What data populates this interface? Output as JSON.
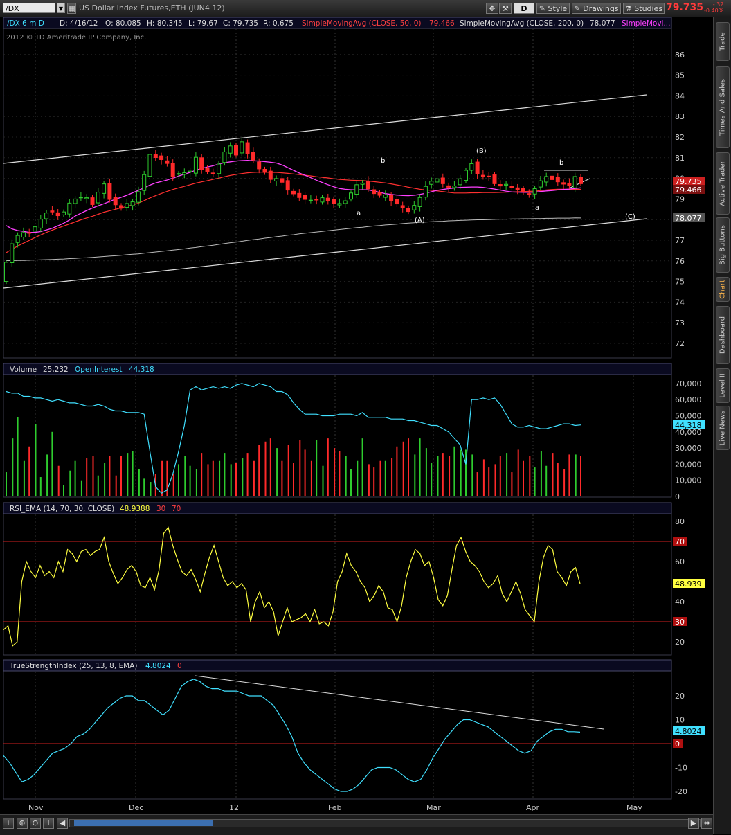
{
  "toolbar": {
    "symbol": "/DX",
    "title": "US Dollar Index Futures,ETH (JUN4 12)",
    "period": "D",
    "style": "Style",
    "drawings": "Drawings",
    "studies": "Studies",
    "last": "79.735",
    "change": "-.32",
    "change_pct": "-0.40%"
  },
  "sidebar_tabs": [
    {
      "label": "Trade",
      "active": false
    },
    {
      "label": "Times And Sales",
      "active": false
    },
    {
      "label": "Active Trader",
      "active": false
    },
    {
      "label": "Big Buttons",
      "active": false
    },
    {
      "label": "Chart",
      "active": true
    },
    {
      "label": "Dashboard",
      "active": false
    },
    {
      "label": "Level II",
      "active": false
    },
    {
      "label": "Live News",
      "active": false
    }
  ],
  "colors": {
    "up": "#2ecc2e",
    "down": "#ff2a2a",
    "sma50": "#ff3030",
    "sma20": "#ff40ff",
    "sma200": "#bbbbbb",
    "cyan": "#40e0ff",
    "yellow": "#ffff40"
  },
  "chart_data": [
    {
      "type": "candlestick",
      "header": {
        "symbol": "/DX 6 m D",
        "date": "D: 4/16/12",
        "open": "O: 80.085",
        "high": "H: 80.345",
        "low": "L: 79.67",
        "close": "C: 79.735",
        "range": "R: 0.675",
        "sma1_label": "SimpleMovingAvg (CLOSE, 50, 0)",
        "sma1_value": "79.466",
        "sma2_label": "SimpleMovingAvg (CLOSE, 200, 0)",
        "sma2_value": "78.077",
        "sma3_label": "SimpleMovi..."
      },
      "copyright": "2012 © TD Ameritrade IP Company, Inc.",
      "ylim": [
        71,
        86.5
      ],
      "yticks": [
        "86",
        "85",
        "84",
        "83",
        "82",
        "81",
        "80",
        "79",
        "78",
        "77",
        "76",
        "75",
        "74",
        "73",
        "72"
      ],
      "xticks": [
        "Nov",
        "Dec",
        "12",
        "Feb",
        "Mar",
        "Apr",
        "May"
      ],
      "price_labels": {
        "last": "79.735",
        "sma50": "79.466",
        "sma200": "78.077"
      },
      "wave_labels": [
        "b",
        "a",
        "(A)",
        "(B)",
        "a",
        "b",
        "(C)"
      ],
      "closes": [
        75.93,
        76.83,
        77.23,
        77.37,
        77.36,
        77.65,
        78.02,
        78.32,
        78.37,
        78.19,
        78.37,
        78.8,
        79.0,
        79.09,
        79.06,
        78.73,
        79.33,
        79.73,
        78.98,
        78.72,
        78.55,
        78.78,
        78.86,
        79.35,
        80.18,
        81.16,
        81.01,
        80.91,
        80.72,
        80.1,
        80.23,
        80.27,
        80.35,
        81.02,
        80.44,
        80.34,
        80.23,
        80.69,
        81.28,
        81.57,
        81.13,
        81.77,
        81.21,
        80.89,
        80.46,
        80.29,
        79.95,
        79.99,
        79.81,
        79.43,
        79.25,
        79.07,
        78.98,
        78.94,
        78.95,
        79.06,
        78.91,
        78.79,
        78.78,
        78.91,
        79.29,
        79.69,
        79.77,
        79.49,
        79.26,
        79.18,
        79.2,
        78.91,
        78.76,
        78.56,
        78.39,
        78.69,
        79.07,
        79.61,
        79.86,
        79.98,
        79.74,
        79.57,
        79.63,
        79.98,
        80.39,
        80.71,
        80.21,
        80.09,
        80.07,
        79.74,
        79.63,
        79.71,
        79.56,
        79.45,
        79.34,
        79.24,
        79.5,
        79.88,
        80.09,
        79.94,
        79.83,
        79.72,
        79.64,
        80.09,
        79.74
      ],
      "series": [
        {
          "name": "SimpleMovingAvg (CLOSE, 50, 0)",
          "values": [
            76.4,
            76.56,
            76.72,
            76.86,
            76.99,
            77.13,
            77.26,
            77.38,
            77.49,
            77.59,
            77.69,
            77.79,
            77.89,
            77.99,
            78.08,
            78.16,
            78.26,
            78.36,
            78.43,
            78.5,
            78.57,
            78.64,
            78.71,
            78.8,
            78.92,
            79.05,
            79.16,
            79.27,
            79.37,
            79.46,
            79.54,
            79.61,
            79.69,
            79.77,
            79.83,
            79.89,
            79.95,
            80.01,
            80.08,
            80.14,
            80.19,
            80.23,
            80.27,
            80.29,
            80.3,
            80.3,
            80.29,
            80.29,
            80.27,
            80.24,
            80.21,
            80.18,
            80.15,
            80.12,
            80.08,
            80.05,
            80.02,
            79.98,
            79.95,
            79.93,
            79.91,
            79.9,
            79.89,
            79.87,
            79.84,
            79.81,
            79.78,
            79.73,
            79.68,
            79.63,
            79.57,
            79.52,
            79.47,
            79.44,
            79.42,
            79.39,
            79.36,
            79.32,
            79.29,
            79.29,
            79.29,
            79.3,
            79.3,
            79.31,
            79.31,
            79.31,
            79.32,
            79.33,
            79.34,
            79.35,
            79.36,
            79.37,
            79.38,
            79.41,
            79.44,
            79.46,
            79.47,
            79.47,
            79.46,
            79.47,
            79.466
          ]
        },
        {
          "name": "SimpleMovingAvg (CLOSE, 200, 0)",
          "values": [
            76.01,
            76.01,
            76.02,
            76.02,
            76.03,
            76.04,
            76.05,
            76.06,
            76.07,
            76.08,
            76.09,
            76.11,
            76.12,
            76.14,
            76.15,
            76.17,
            76.19,
            76.21,
            76.23,
            76.25,
            76.27,
            76.3,
            76.32,
            76.34,
            76.37,
            76.4,
            76.43,
            76.46,
            76.49,
            76.52,
            76.55,
            76.58,
            76.62,
            76.65,
            76.69,
            76.72,
            76.76,
            76.8,
            76.84,
            76.88,
            76.91,
            76.95,
            76.99,
            77.03,
            77.06,
            77.1,
            77.13,
            77.17,
            77.2,
            77.24,
            77.27,
            77.31,
            77.34,
            77.37,
            77.4,
            77.43,
            77.46,
            77.49,
            77.52,
            77.55,
            77.58,
            77.61,
            77.63,
            77.66,
            77.69,
            77.71,
            77.74,
            77.76,
            77.78,
            77.81,
            77.83,
            77.85,
            77.87,
            77.88,
            77.9,
            77.91,
            77.92,
            77.94,
            77.95,
            77.96,
            77.97,
            77.98,
            77.99,
            77.99,
            78.0,
            78.01,
            78.02,
            78.02,
            78.03,
            78.03,
            78.04,
            78.04,
            78.05,
            78.05,
            78.06,
            78.06,
            78.07,
            78.07,
            78.07,
            78.08,
            78.077
          ]
        },
        {
          "name": "SimpleMovi...",
          "values": [
            77.71,
            77.55,
            77.47,
            77.43,
            77.38,
            77.38,
            77.42,
            77.5,
            77.58,
            77.7,
            77.83,
            77.98,
            78.17,
            78.31,
            78.44,
            78.56,
            78.67,
            78.77,
            78.88,
            78.99,
            79.08,
            79.18,
            79.3,
            79.42,
            79.54,
            79.67,
            79.78,
            79.85,
            79.92,
            80.01,
            80.11,
            80.2,
            80.29,
            80.4,
            80.48,
            80.55,
            80.61,
            80.69,
            80.76,
            80.8,
            80.84,
            80.86,
            80.87,
            80.85,
            80.84,
            80.81,
            80.78,
            80.74,
            80.65,
            80.52,
            80.39,
            80.26,
            80.15,
            80.03,
            79.91,
            79.8,
            79.69,
            79.59,
            79.51,
            79.47,
            79.45,
            79.44,
            79.45,
            79.44,
            79.39,
            79.32,
            79.26,
            79.22,
            79.19,
            79.17,
            79.16,
            79.18,
            79.22,
            79.28,
            79.35,
            79.42,
            79.46,
            79.5,
            79.53,
            79.56,
            79.57,
            79.58,
            79.58,
            79.56,
            79.52,
            79.48,
            79.43,
            79.38,
            79.34,
            79.33,
            79.32,
            79.32,
            79.33,
            79.36,
            79.39,
            79.41,
            79.44,
            79.46,
            79.48,
            79.51,
            79.54
          ]
        }
      ]
    },
    {
      "type": "bar",
      "label": "Volume",
      "value": "25,232",
      "oi_label": "OpenInterest",
      "oi_value": "44,318",
      "ylim": [
        0,
        72000
      ],
      "yticks": [
        "70,000",
        "60,000",
        "50,000",
        "40,000",
        "30,000",
        "20,000",
        "10,000",
        "0"
      ],
      "values": [
        15000,
        36000,
        49000,
        22000,
        31000,
        45000,
        12000,
        26000,
        40000,
        19000,
        7000,
        16000,
        22000,
        10000,
        24000,
        25000,
        13000,
        21000,
        25000,
        13000,
        25000,
        27000,
        28000,
        17000,
        11000,
        9000,
        14000,
        22000,
        22000,
        14000,
        20000,
        25000,
        19000,
        17000,
        27000,
        20000,
        22000,
        22000,
        27000,
        20000,
        21000,
        24000,
        27000,
        22000,
        32000,
        34000,
        36000,
        30000,
        22000,
        32000,
        21000,
        35000,
        29000,
        22000,
        35000,
        19000,
        36000,
        30000,
        28000,
        25000,
        17000,
        22000,
        36000,
        20000,
        18000,
        22000,
        22000,
        24000,
        31000,
        34000,
        36000,
        26000,
        36000,
        30000,
        21000,
        25000,
        27000,
        25000,
        31000,
        29000,
        29000,
        26000,
        15000,
        23000,
        18000,
        20000,
        25000,
        27000,
        15000,
        29000,
        22000,
        25000,
        18000,
        28000,
        19000,
        27000,
        21000,
        17000,
        26000,
        26000,
        25232
      ],
      "series": [
        {
          "name": "OpenInterest",
          "values": [
            65000,
            64000,
            64000,
            62000,
            62000,
            61000,
            61000,
            60000,
            59000,
            60000,
            59000,
            58000,
            58000,
            57000,
            56000,
            56000,
            57000,
            56000,
            54000,
            53000,
            53000,
            52000,
            52000,
            52000,
            51000,
            28000,
            6000,
            2000,
            4000,
            14000,
            28000,
            44000,
            66000,
            68000,
            66000,
            67000,
            68000,
            67000,
            68000,
            67000,
            69000,
            70000,
            69000,
            68000,
            70000,
            69000,
            68000,
            65000,
            65000,
            63000,
            58000,
            54000,
            51000,
            51000,
            51000,
            50000,
            50000,
            50000,
            51000,
            51000,
            51000,
            50000,
            52000,
            49000,
            49000,
            49000,
            49000,
            48000,
            48000,
            48000,
            47000,
            47000,
            46000,
            45000,
            44000,
            44000,
            42000,
            40000,
            36000,
            32000,
            20000,
            60000,
            60000,
            61000,
            60000,
            61000,
            57000,
            51000,
            45000,
            43000,
            43000,
            44000,
            43000,
            42000,
            42000,
            43000,
            44000,
            45000,
            45000,
            44000,
            44318
          ]
        }
      ]
    },
    {
      "type": "line",
      "label": "RSI_EMA (14, 70, 30, CLOSE)",
      "value": "48.9388",
      "ob": "70",
      "os": "30",
      "last_label": "48.939",
      "ylim": [
        15,
        85
      ],
      "yticks": [
        "80",
        "60",
        "40",
        "20"
      ],
      "values": [
        26,
        28,
        18,
        20,
        50,
        60,
        55,
        52,
        58,
        53,
        55,
        52,
        60,
        55,
        66,
        64,
        60,
        65,
        66,
        63,
        65,
        66,
        72,
        60,
        54,
        49,
        52,
        56,
        58,
        55,
        48,
        47,
        52,
        46,
        56,
        74,
        77,
        68,
        61,
        55,
        53,
        56,
        51,
        45,
        54,
        62,
        68,
        60,
        52,
        48,
        50,
        47,
        49,
        46,
        30,
        40,
        45,
        37,
        40,
        35,
        23,
        30,
        37,
        30,
        31,
        32,
        34,
        30,
        36,
        29,
        30,
        28,
        35,
        50,
        55,
        64,
        58,
        55,
        50,
        47,
        40,
        43,
        48,
        45,
        37,
        36,
        30,
        38,
        52,
        60,
        66,
        64,
        58,
        60,
        52,
        41,
        38,
        43,
        56,
        68,
        72,
        65,
        60,
        58,
        55,
        50,
        47,
        49,
        53,
        44,
        40,
        45,
        50,
        44,
        36,
        33,
        30,
        50,
        62,
        68,
        66,
        55,
        52,
        48,
        55,
        57,
        48.9388
      ]
    },
    {
      "type": "line",
      "label": "TrueStrengthIndex (25, 13, 8, EMA)",
      "value": "4.8024",
      "zero": "0",
      "last_label": "4.8024",
      "ylim": [
        -23,
        29
      ],
      "yticks": [
        "20",
        "10",
        "0",
        "-10",
        "-20"
      ],
      "values": [
        -5,
        -8,
        -12,
        -16,
        -15,
        -13,
        -10,
        -7,
        -4,
        -3,
        -2,
        0,
        3,
        4,
        6,
        9,
        12,
        15,
        17,
        19,
        20,
        20,
        18,
        18,
        16,
        14,
        12,
        14,
        19,
        24,
        26,
        27,
        26,
        24,
        23,
        23,
        22,
        22,
        22,
        21,
        20,
        20,
        20,
        18,
        16,
        12,
        8,
        3,
        -4,
        -8,
        -11,
        -13,
        -15,
        -17,
        -19,
        -20,
        -20,
        -19,
        -17,
        -14,
        -11,
        -10,
        -10,
        -10,
        -11,
        -13,
        -15,
        -16,
        -15,
        -11,
        -6,
        -2,
        2,
        5,
        8,
        10,
        10,
        9,
        8,
        7,
        5,
        3,
        1,
        -1,
        -3,
        -4,
        -3,
        1,
        3,
        5,
        6,
        6,
        5,
        5,
        4.8024
      ],
      "annotations": []
    }
  ]
}
